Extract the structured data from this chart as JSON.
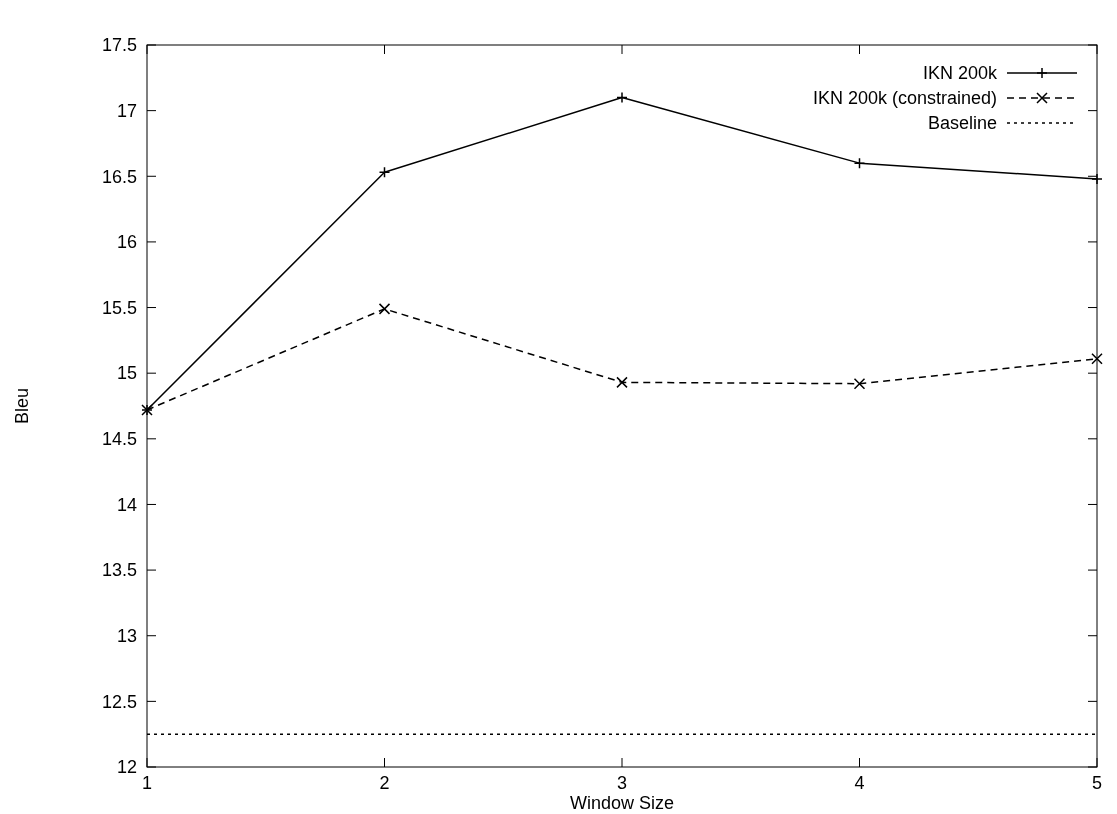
{
  "chart_data": {
    "type": "line",
    "xlabel": "Window Size",
    "ylabel": "Bleu",
    "x": [
      1,
      2,
      3,
      4,
      5
    ],
    "xlim": [
      1,
      5
    ],
    "xticks": [
      1,
      2,
      3,
      4,
      5
    ],
    "ylim": [
      12,
      17.5
    ],
    "yticks": [
      12,
      12.5,
      13,
      13.5,
      14,
      14.5,
      15,
      15.5,
      16,
      16.5,
      17,
      17.5
    ],
    "grid": false,
    "legend": "top right",
    "series": [
      {
        "name": "IKN 200k",
        "color": "#000000",
        "values": [
          14.72,
          16.53,
          17.1,
          16.6,
          16.48
        ],
        "marker": "plus",
        "line_style": "solid"
      },
      {
        "name": "IKN 200k (constrained)",
        "color": "#000000",
        "values": [
          14.72,
          15.49,
          14.93,
          14.92,
          15.11
        ],
        "marker": "cross",
        "line_style": "dashed"
      },
      {
        "name": "Baseline",
        "color": "#000000",
        "values": [
          12.25,
          12.25,
          12.25,
          12.25,
          12.25
        ],
        "marker": "none",
        "line_style": "dotted"
      }
    ]
  }
}
